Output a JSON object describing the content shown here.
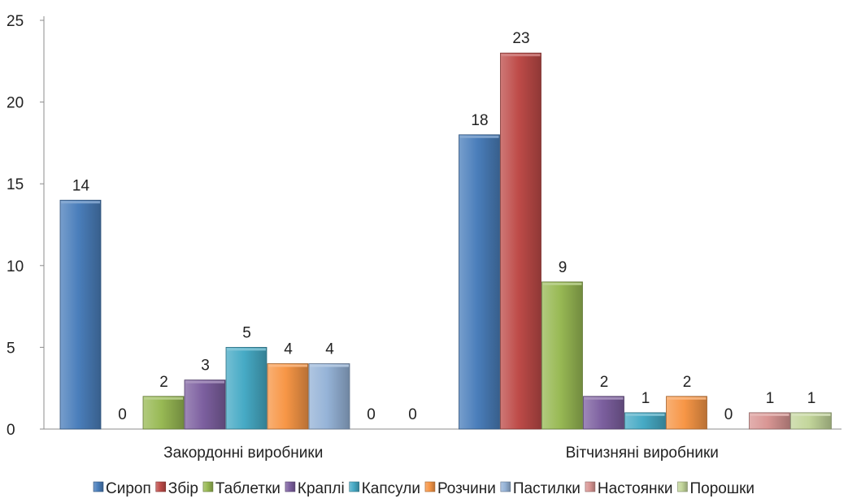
{
  "chart_data": {
    "type": "bar",
    "title": "",
    "xlabel": "",
    "ylabel": "",
    "ylim": [
      0,
      25
    ],
    "yticks": [
      0,
      5,
      10,
      15,
      20,
      25
    ],
    "grid": false,
    "legend_position": "bottom",
    "categories": [
      "Закордонні виробники",
      "Вітчизняні виробники"
    ],
    "series": [
      {
        "name": "Сироп",
        "values": [
          14,
          18
        ],
        "color": "#4a7ebb"
      },
      {
        "name": "Збір",
        "values": [
          0,
          23
        ],
        "color": "#be4b48"
      },
      {
        "name": "Таблетки",
        "values": [
          2,
          9
        ],
        "color": "#98b954"
      },
      {
        "name": "Краплі",
        "values": [
          3,
          2
        ],
        "color": "#7d60a0"
      },
      {
        "name": "Капсули",
        "values": [
          5,
          1
        ],
        "color": "#46aac5"
      },
      {
        "name": "Розчини",
        "values": [
          4,
          2
        ],
        "color": "#f79646"
      },
      {
        "name": "Пастилки",
        "values": [
          4,
          0
        ],
        "color": "#95b3d7"
      },
      {
        "name": "Настоянки",
        "values": [
          0,
          1
        ],
        "color": "#d99694"
      },
      {
        "name": "Порошки",
        "values": [
          0,
          1
        ],
        "color": "#c3d69b"
      }
    ]
  }
}
